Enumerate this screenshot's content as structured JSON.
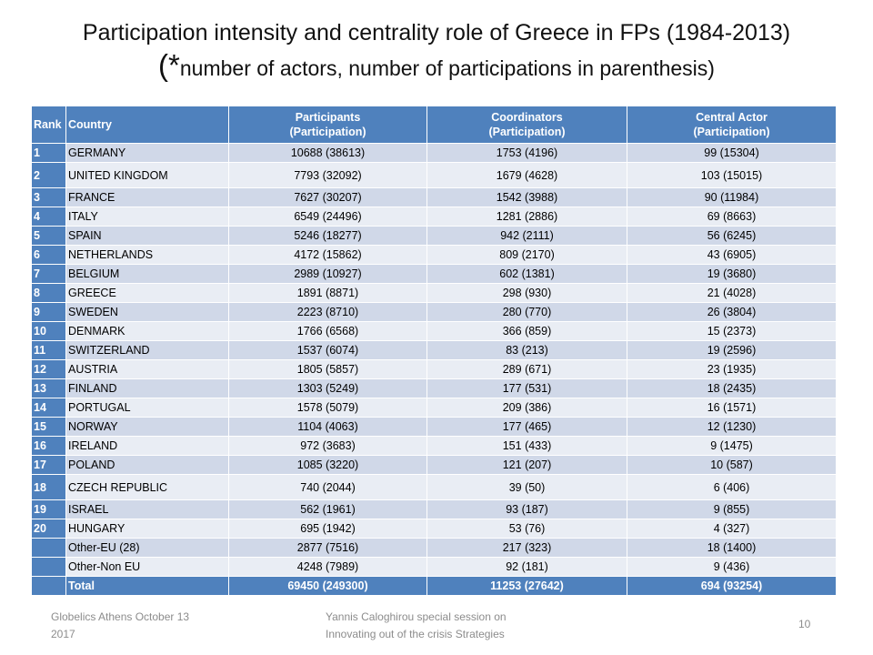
{
  "title": {
    "line1": "Participation intensity and centrality role of Greece in FPs (1984-2013)",
    "line2_prefix": "(*",
    "line2_rest": "number of actors, number of participations in parenthesis)"
  },
  "table": {
    "headers": {
      "rank": "Rank",
      "country": "Country",
      "participants_l1": "Participants",
      "participants_l2": "(Participation)",
      "coordinators_l1": "Coordinators",
      "coordinators_l2": "(Participation)",
      "central_l1": "Central Actor",
      "central_l2": "(Participation)"
    },
    "rows": [
      {
        "rank": "1",
        "country": "GERMANY",
        "participants": "10688 (38613)",
        "coordinators": "1753 (4196)",
        "central": "99 (15304)"
      },
      {
        "rank": "2",
        "country": "UNITED KINGDOM",
        "participants": "7793 (32092)",
        "coordinators": "1679 (4628)",
        "central": "103 (15015)"
      },
      {
        "rank": "3",
        "country": "FRANCE",
        "participants": "7627 (30207)",
        "coordinators": "1542 (3988)",
        "central": "90 (11984)"
      },
      {
        "rank": "4",
        "country": "ITALY",
        "participants": "6549 (24496)",
        "coordinators": "1281 (2886)",
        "central": "69 (8663)"
      },
      {
        "rank": "5",
        "country": "SPAIN",
        "participants": "5246 (18277)",
        "coordinators": "942 (2111)",
        "central": "56 (6245)"
      },
      {
        "rank": "6",
        "country": "NETHERLANDS",
        "participants": "4172 (15862)",
        "coordinators": "809 (2170)",
        "central": "43 (6905)"
      },
      {
        "rank": "7",
        "country": "BELGIUM",
        "participants": "2989 (10927)",
        "coordinators": "602 (1381)",
        "central": "19 (3680)"
      },
      {
        "rank": "8",
        "country": "GREECE",
        "participants": "1891 (8871)",
        "coordinators": "298 (930)",
        "central": "21 (4028)"
      },
      {
        "rank": "9",
        "country": "SWEDEN",
        "participants": "2223 (8710)",
        "coordinators": "280 (770)",
        "central": "26 (3804)"
      },
      {
        "rank": "10",
        "country": "DENMARK",
        "participants": "1766 (6568)",
        "coordinators": "366 (859)",
        "central": "15 (2373)"
      },
      {
        "rank": "11",
        "country": "SWITZERLAND",
        "participants": "1537 (6074)",
        "coordinators": "83 (213)",
        "central": "19 (2596)"
      },
      {
        "rank": "12",
        "country": "AUSTRIA",
        "participants": "1805 (5857)",
        "coordinators": "289 (671)",
        "central": "23 (1935)"
      },
      {
        "rank": "13",
        "country": "FINLAND",
        "participants": "1303 (5249)",
        "coordinators": "177 (531)",
        "central": "18 (2435)"
      },
      {
        "rank": "14",
        "country": "PORTUGAL",
        "participants": "1578 (5079)",
        "coordinators": "209 (386)",
        "central": "16 (1571)"
      },
      {
        "rank": "15",
        "country": "NORWAY",
        "participants": "1104 (4063)",
        "coordinators": "177 (465)",
        "central": "12 (1230)"
      },
      {
        "rank": "16",
        "country": "IRELAND",
        "participants": "972 (3683)",
        "coordinators": "151 (433)",
        "central": "9 (1475)"
      },
      {
        "rank": "17",
        "country": "POLAND",
        "participants": "1085 (3220)",
        "coordinators": "121 (207)",
        "central": "10 (587)"
      },
      {
        "rank": "18",
        "country": "CZECH REPUBLIC",
        "participants": "740 (2044)",
        "coordinators": "39 (50)",
        "central": "6 (406)"
      },
      {
        "rank": "19",
        "country": "ISRAEL",
        "participants": "562 (1961)",
        "coordinators": "93 (187)",
        "central": "9 (855)"
      },
      {
        "rank": "20",
        "country": "HUNGARY",
        "participants": "695 (1942)",
        "coordinators": "53 (76)",
        "central": "4 (327)"
      },
      {
        "rank": "",
        "country": "Other-EU (28)",
        "participants": "2877 (7516)",
        "coordinators": "217 (323)",
        "central": "18 (1400)"
      },
      {
        "rank": "",
        "country": "Other-Non EU",
        "participants": "4248 (7989)",
        "coordinators": "92 (181)",
        "central": "9 (436)"
      }
    ],
    "total": {
      "rank": "",
      "country": "Total",
      "participants": "69450 (249300)",
      "coordinators": "11253 (27642)",
      "central": "694 (93254)"
    }
  },
  "footer": {
    "left_line1": "Globelics Athens October 13",
    "left_line2": "2017",
    "center_line1": "Yannis Caloghirou special session on",
    "center_line2": "Innovating out of the crisis Strategies",
    "page_number": "10"
  }
}
